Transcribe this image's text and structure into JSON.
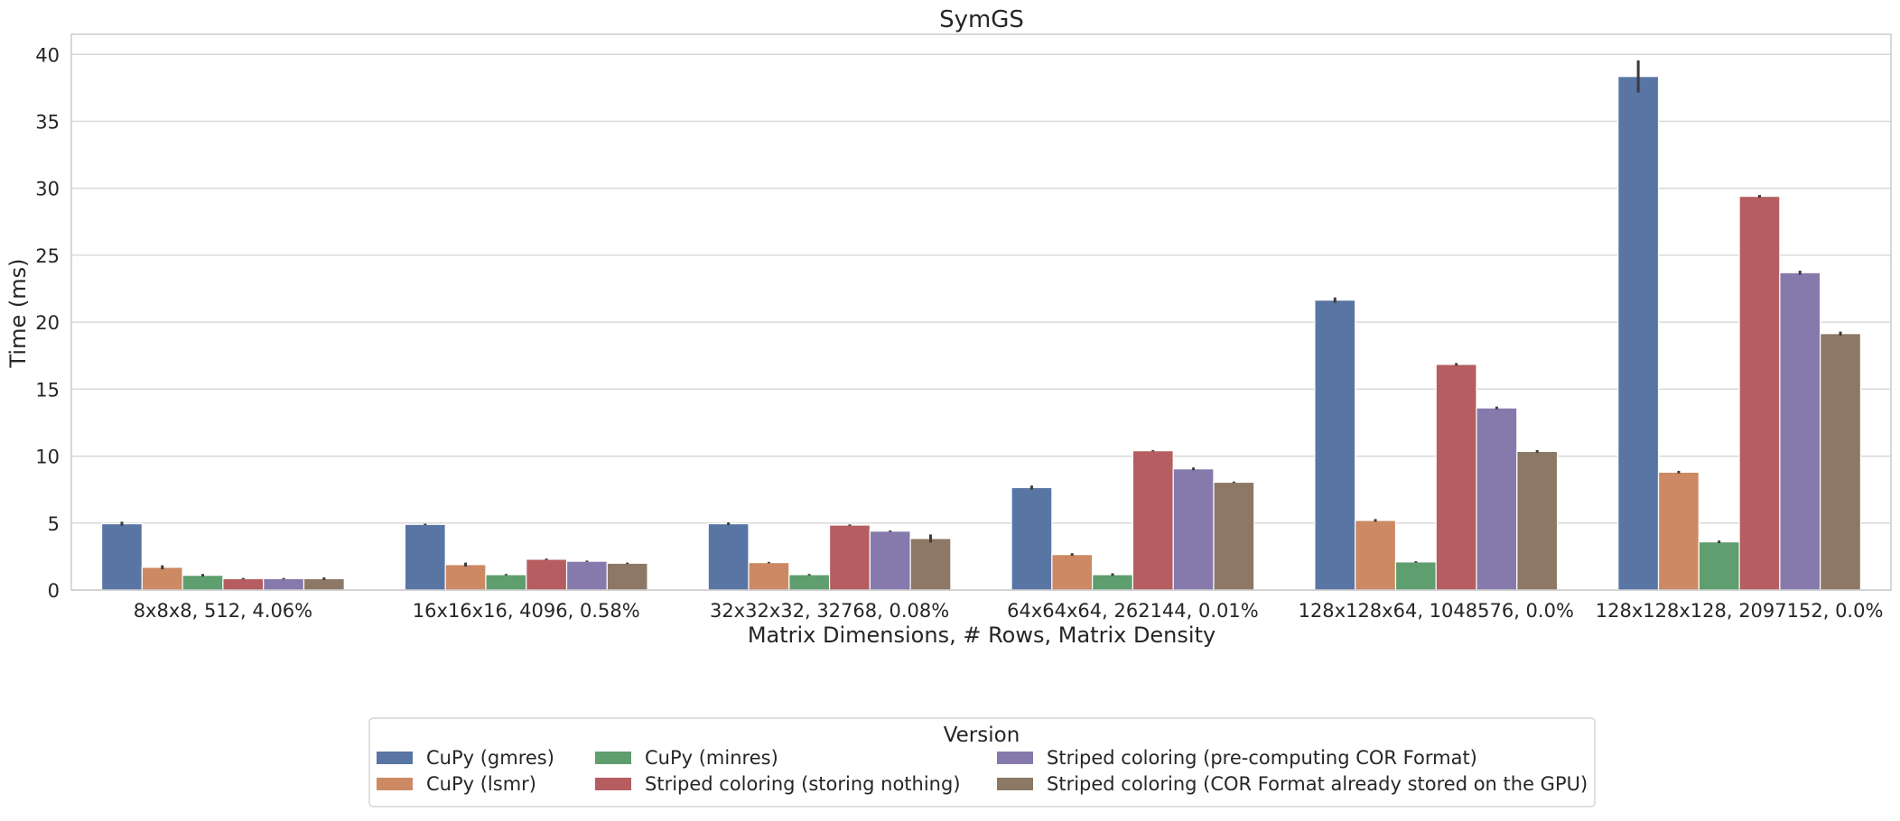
{
  "chart_data": {
    "type": "bar",
    "title": "SymGS",
    "xlabel": "Matrix Dimensions, # Rows, Matrix Density",
    "ylabel": "Time (ms)",
    "ylim": [
      0,
      41.5
    ],
    "yticks": [
      0,
      5,
      10,
      15,
      20,
      25,
      30,
      35,
      40
    ],
    "grid": true,
    "legend_title": "Version",
    "legend_position": "bottom-center, below the x-axis label",
    "categories": [
      "8x8x8, 512, 4.06%",
      "16x16x16, 4096, 0.58%",
      "32x32x32, 32768, 0.08%",
      "64x64x64, 262144, 0.01%",
      "128x128x64, 1048576, 0.0%",
      "128x128x128, 2097152, 0.0%"
    ],
    "series": [
      {
        "name": "CuPy (gmres)",
        "color": "#5875a4",
        "values": [
          4.95,
          4.9,
          4.95,
          7.65,
          21.65,
          38.35
        ],
        "err": [
          0.15,
          0.05,
          0.1,
          0.15,
          0.2,
          1.2
        ]
      },
      {
        "name": "CuPy (lsmr)",
        "color": "#cc8963",
        "values": [
          1.7,
          1.9,
          2.05,
          2.65,
          5.2,
          8.8
        ],
        "err": [
          0.15,
          0.15,
          0.05,
          0.1,
          0.1,
          0.1
        ]
      },
      {
        "name": "CuPy (minres)",
        "color": "#5f9e6e",
        "values": [
          1.1,
          1.15,
          1.15,
          1.15,
          2.1,
          3.6
        ],
        "err": [
          0.1,
          0.05,
          0.05,
          0.1,
          0.05,
          0.1
        ]
      },
      {
        "name": "Striped coloring (storing nothing)",
        "color": "#b55d60",
        "values": [
          0.85,
          2.3,
          4.85,
          10.4,
          16.85,
          29.4
        ],
        "err": [
          0.05,
          0.05,
          0.05,
          0.05,
          0.1,
          0.1
        ]
      },
      {
        "name": "Striped coloring (pre-computing COR Format)",
        "color": "#857aab",
        "values": [
          0.85,
          2.15,
          4.4,
          9.05,
          13.6,
          23.7
        ],
        "err": [
          0.05,
          0.05,
          0.05,
          0.1,
          0.1,
          0.15
        ]
      },
      {
        "name": "Striped coloring (COR Format already stored on the GPU)",
        "color": "#8d7866",
        "values": [
          0.85,
          2.0,
          3.85,
          8.05,
          10.35,
          19.15
        ],
        "err": [
          0.1,
          0.05,
          0.3,
          0.05,
          0.1,
          0.15
        ]
      }
    ]
  }
}
